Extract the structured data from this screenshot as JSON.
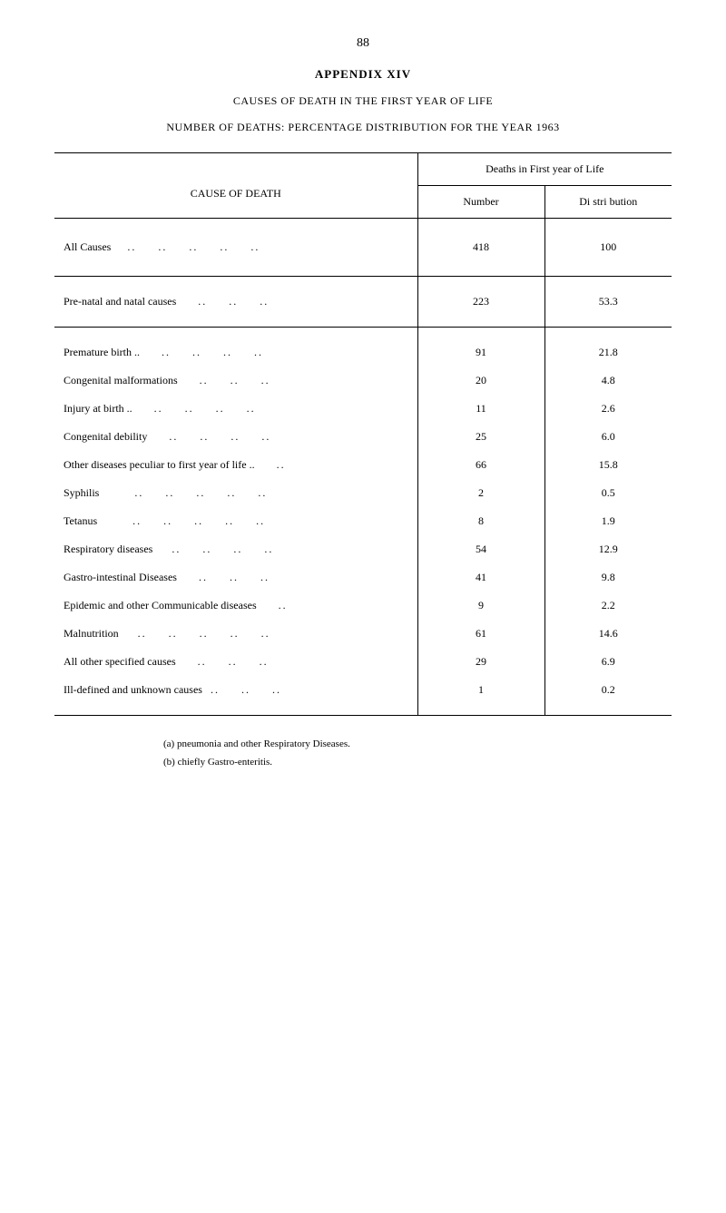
{
  "page_number": "88",
  "appendix_title": "APPENDIX XIV",
  "subtitle1": "CAUSES OF DEATH IN THE FIRST YEAR OF LIFE",
  "subtitle2": "NUMBER OF DEATHS: PERCENTAGE DISTRIBUTION FOR THE YEAR 1963",
  "table": {
    "cause_header": "CAUSE OF DEATH",
    "deaths_header": "Deaths in First year of Life",
    "number_header": "Number",
    "distribution_header": "Di stri bution",
    "all_causes": {
      "label": "All Causes",
      "number": "418",
      "distribution": "100"
    },
    "prenatal": {
      "label": "Pre-natal and natal causes",
      "number": "223",
      "distribution": "53.3"
    },
    "rows": [
      {
        "label": "Premature birth ..",
        "number": "91",
        "distribution": "21.8"
      },
      {
        "label": "Congenital malformations",
        "number": "20",
        "distribution": "4.8"
      },
      {
        "label": "Injury at birth  ..",
        "number": "11",
        "distribution": "2.6"
      },
      {
        "label": "Congenital debility",
        "number": "25",
        "distribution": "6.0"
      },
      {
        "label": "Other diseases peculiar to first year of life ..",
        "number": "66",
        "distribution": "15.8"
      },
      {
        "label": "Syphilis",
        "number": "2",
        "distribution": "0.5"
      },
      {
        "label": "Tetanus",
        "number": "8",
        "distribution": "1.9"
      },
      {
        "label": "Respiratory diseases",
        "number": "54",
        "distribution": "12.9"
      },
      {
        "label": "Gastro-intestinal Diseases",
        "number": "41",
        "distribution": "9.8"
      },
      {
        "label": "Epidemic and other Communicable diseases",
        "number": "9",
        "distribution": "2.2"
      },
      {
        "label": "Malnutrition",
        "number": "61",
        "distribution": "14.6"
      },
      {
        "label": "All other specified causes",
        "number": "29",
        "distribution": "6.9"
      },
      {
        "label": "Ill-defined and unknown causes",
        "number": "1",
        "distribution": "0.2"
      }
    ]
  },
  "notes": {
    "a": "(a)  pneumonia and other Respiratory Diseases.",
    "b": "(b)  chiefly Gastro-enteritis."
  },
  "styling": {
    "background_color": "#ffffff",
    "text_color": "#000000",
    "border_color": "#000000",
    "font_family": "Times New Roman, serif",
    "body_font_size": 12,
    "title_font_size": 13
  }
}
